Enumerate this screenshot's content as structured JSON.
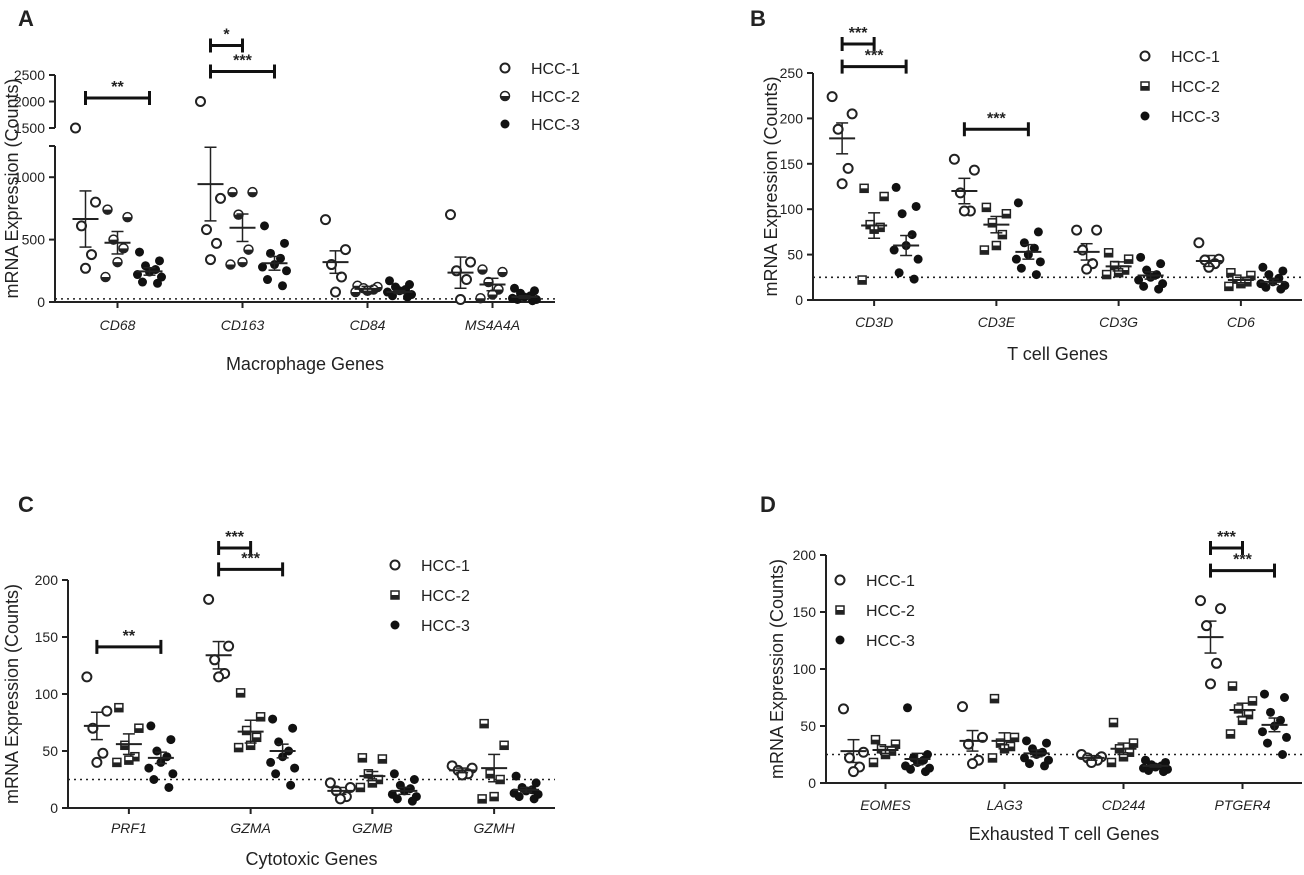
{
  "chart_data": [
    {
      "panel": "A",
      "type": "scatter",
      "ylabel": "mRNA Expression (Counts)",
      "xlabel": "Macrophage Genes",
      "ylim": [
        0,
        2500
      ],
      "axis_break": {
        "lower_top": 1250,
        "upper_bottom": 1500
      },
      "yticks_lower": [
        0,
        500,
        1000
      ],
      "yticks_upper": [
        1500,
        2000,
        2500
      ],
      "reference_line": 25,
      "legend": [
        "HCC-1",
        "HCC-2",
        "HCC-3"
      ],
      "categories": [
        "CD68",
        "CD163",
        "CD84",
        "MS4A4A"
      ],
      "series": [
        {
          "name": "HCC-1",
          "mean": [
            665,
            945,
            320,
            235
          ],
          "sem": [
            225,
            295,
            90,
            125
          ],
          "points": [
            [
              1500,
              800,
              610,
              380,
              270
            ],
            [
              2000,
              830,
              580,
              470,
              340
            ],
            [
              660,
              420,
              300,
              200,
              80
            ],
            [
              700,
              320,
              250,
              180,
              20
            ]
          ]
        },
        {
          "name": "HCC-2",
          "mean": [
            475,
            595,
            105,
            140
          ],
          "sem": [
            90,
            110,
            20,
            50
          ],
          "points": [
            [
              740,
              680,
              500,
              430,
              320,
              200
            ],
            [
              880,
              880,
              700,
              420,
              320,
              300
            ],
            [
              130,
              120,
              110,
              100,
              90,
              80
            ],
            [
              260,
              240,
              160,
              100,
              60,
              30
            ]
          ]
        },
        {
          "name": "HCC-3",
          "mean": [
            245,
            310,
            80,
            40
          ],
          "sem": [
            30,
            55,
            12,
            10
          ],
          "points": [
            [
              400,
              330,
              290,
              260,
              240,
              220,
              200,
              160,
              150
            ],
            [
              610,
              470,
              390,
              350,
              300,
              280,
              250,
              180,
              130
            ],
            [
              170,
              140,
              120,
              100,
              90,
              80,
              60,
              50,
              40
            ],
            [
              110,
              90,
              70,
              50,
              40,
              30,
              20,
              20,
              10
            ]
          ]
        }
      ],
      "significance": [
        {
          "category": "CD68",
          "from": "HCC-1",
          "to": "HCC-3",
          "label": "**"
        },
        {
          "category": "CD163",
          "from": "HCC-1",
          "to": "HCC-2",
          "label": "*"
        },
        {
          "category": "CD163",
          "from": "HCC-1",
          "to": "HCC-3",
          "label": "***"
        }
      ]
    },
    {
      "panel": "B",
      "type": "scatter",
      "ylabel": "mRNA Expression (Counts)",
      "xlabel": "T cell Genes",
      "ylim": [
        0,
        250
      ],
      "yticks": [
        0,
        50,
        100,
        150,
        200,
        250
      ],
      "reference_line": 25,
      "legend": [
        "HCC-1",
        "HCC-2",
        "HCC-3"
      ],
      "categories": [
        "CD3D",
        "CD3E",
        "CD3G",
        "CD6"
      ],
      "series": [
        {
          "name": "HCC-1",
          "mean": [
            178,
            120,
            53,
            43
          ],
          "sem": [
            17,
            14,
            9,
            6
          ],
          "points": [
            [
              224,
              205,
              188,
              145,
              128
            ],
            [
              155,
              143,
              118,
              98,
              98
            ],
            [
              77,
              77,
              55,
              40,
              34
            ],
            [
              63,
              45,
              44,
              40,
              36
            ]
          ]
        },
        {
          "name": "HCC-2",
          "mean": [
            82,
            83,
            37,
            22
          ],
          "sem": [
            14,
            9,
            5,
            3
          ],
          "points": [
            [
              123,
              114,
              83,
              80,
              78,
              22
            ],
            [
              102,
              95,
              85,
              72,
              60,
              55
            ],
            [
              52,
              45,
              38,
              33,
              30,
              28
            ],
            [
              30,
              27,
              23,
              20,
              18,
              15
            ]
          ]
        },
        {
          "name": "HCC-3",
          "mean": [
            60,
            53,
            27,
            20
          ],
          "sem": [
            11,
            8,
            4,
            3
          ],
          "points": [
            [
              124,
              103,
              95,
              72,
              60,
              55,
              45,
              30,
              23
            ],
            [
              107,
              75,
              63,
              57,
              50,
              45,
              42,
              35,
              28
            ],
            [
              47,
              40,
              33,
              28,
              25,
              22,
              18,
              15,
              12
            ],
            [
              36,
              32,
              28,
              24,
              20,
              18,
              16,
              14,
              12
            ]
          ]
        }
      ],
      "significance": [
        {
          "category": "CD3D",
          "from": "HCC-1",
          "to": "HCC-2",
          "label": "***"
        },
        {
          "category": "CD3D",
          "from": "HCC-1",
          "to": "HCC-3",
          "label": "***"
        },
        {
          "category": "CD3E",
          "from": "HCC-1",
          "to": "HCC-3",
          "label": "***"
        }
      ]
    },
    {
      "panel": "C",
      "type": "scatter",
      "ylabel": "mRNA Expression (Counts)",
      "xlabel": "Cytotoxic Genes",
      "ylim": [
        0,
        200
      ],
      "yticks": [
        0,
        50,
        100,
        150,
        200
      ],
      "reference_line": 25,
      "legend": [
        "HCC-1",
        "HCC-2",
        "HCC-3"
      ],
      "categories": [
        "PRF1",
        "GZMA",
        "GZMB",
        "GZMH"
      ],
      "series": [
        {
          "name": "HCC-1",
          "mean": [
            72,
            134,
            15,
            33
          ],
          "sem": [
            12,
            12,
            3,
            2
          ],
          "points": [
            [
              115,
              85,
              70,
              48,
              40
            ],
            [
              183,
              142,
              130,
              118,
              115
            ],
            [
              22,
              18,
              15,
              10,
              8
            ],
            [
              37,
              35,
              33,
              30,
              29
            ]
          ]
        },
        {
          "name": "HCC-2",
          "mean": [
            56,
            67,
            28,
            35
          ],
          "sem": [
            9,
            10,
            4,
            12
          ],
          "points": [
            [
              88,
              70,
              55,
              45,
              42,
              40
            ],
            [
              101,
              80,
              68,
              62,
              55,
              53
            ],
            [
              44,
              43,
              30,
              25,
              22,
              18
            ],
            [
              74,
              55,
              30,
              25,
              10,
              8
            ]
          ]
        },
        {
          "name": "HCC-3",
          "mean": [
            44,
            50,
            15,
            16
          ],
          "sem": [
            5,
            6,
            3,
            2
          ],
          "points": [
            [
              72,
              60,
              50,
              45,
              40,
              35,
              30,
              25,
              18
            ],
            [
              78,
              70,
              58,
              50,
              45,
              40,
              35,
              30,
              20
            ],
            [
              30,
              25,
              20,
              17,
              15,
              12,
              10,
              8,
              6
            ],
            [
              28,
              22,
              18,
              16,
              15,
              13,
              12,
              10,
              8
            ]
          ]
        }
      ],
      "significance": [
        {
          "category": "PRF1",
          "from": "HCC-1",
          "to": "HCC-3",
          "label": "**"
        },
        {
          "category": "GZMA",
          "from": "HCC-1",
          "to": "HCC-2",
          "label": "***"
        },
        {
          "category": "GZMA",
          "from": "HCC-1",
          "to": "HCC-3",
          "label": "***"
        }
      ]
    },
    {
      "panel": "D",
      "type": "scatter",
      "ylabel": "mRNA Expression (Counts)",
      "xlabel": "Exhausted T cell Genes",
      "ylim": [
        0,
        200
      ],
      "yticks": [
        0,
        50,
        100,
        150,
        200
      ],
      "reference_line": 25,
      "legend": [
        "HCC-1",
        "HCC-2",
        "HCC-3"
      ],
      "categories": [
        "EOMES",
        "LAG3",
        "CD244",
        "PTGER4"
      ],
      "series": [
        {
          "name": "HCC-1",
          "mean": [
            28,
            37,
            22,
            128
          ],
          "sem": [
            10,
            9,
            2,
            14
          ],
          "points": [
            [
              65,
              27,
              22,
              14,
              10
            ],
            [
              67,
              40,
              34,
              20,
              17
            ],
            [
              25,
              23,
              22,
              20,
              18
            ],
            [
              160,
              153,
              138,
              105,
              87
            ]
          ]
        },
        {
          "name": "HCC-2",
          "mean": [
            29,
            37,
            30,
            64
          ],
          "sem": [
            3,
            7,
            5,
            6
          ],
          "points": [
            [
              38,
              34,
              30,
              28,
              25,
              18
            ],
            [
              74,
              40,
              35,
              32,
              30,
              22
            ],
            [
              53,
              35,
              30,
              27,
              23,
              18
            ],
            [
              85,
              72,
              65,
              60,
              55,
              43
            ]
          ]
        },
        {
          "name": "HCC-3",
          "mean": [
            21,
            26,
            15,
            51
          ],
          "sem": [
            5,
            3,
            1,
            6
          ],
          "points": [
            [
              66,
              25,
              22,
              20,
              18,
              15,
              13,
              12,
              10
            ],
            [
              37,
              35,
              30,
              27,
              25,
              22,
              20,
              17,
              15
            ],
            [
              20,
              18,
              16,
              15,
              14,
              13,
              12,
              11,
              10
            ],
            [
              78,
              75,
              62,
              55,
              50,
              45,
              40,
              35,
              25
            ]
          ]
        }
      ],
      "significance": [
        {
          "category": "PTGER4",
          "from": "HCC-1",
          "to": "HCC-2",
          "label": "***"
        },
        {
          "category": "PTGER4",
          "from": "HCC-1",
          "to": "HCC-3",
          "label": "***"
        }
      ]
    }
  ]
}
